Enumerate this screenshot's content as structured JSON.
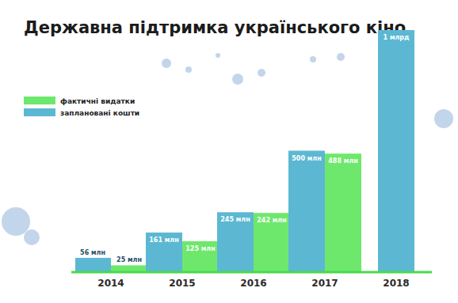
{
  "chart_data": {
    "type": "bar",
    "title": "Державна підтримка українського кіно",
    "categories": [
      "2014",
      "2015",
      "2016",
      "2017",
      "2018"
    ],
    "series": [
      {
        "name": "заплановані кошти",
        "color": "#5cb8d2",
        "values": [
          56,
          161,
          245,
          500,
          1000
        ],
        "value_labels": [
          "56 млн",
          "161 млн",
          "245 млн",
          "500 млн",
          "1 млрд"
        ]
      },
      {
        "name": "фактичні видатки",
        "color": "#6ee86c",
        "values": [
          25,
          125,
          242,
          488,
          null
        ],
        "value_labels": [
          "25 млн",
          "125 млн",
          "242 млн",
          "488 млн",
          null
        ]
      }
    ],
    "ylim": [
      0,
      1000
    ],
    "grid": false,
    "legend": "left",
    "data_labels": true,
    "tick_labels": "x"
  }
}
